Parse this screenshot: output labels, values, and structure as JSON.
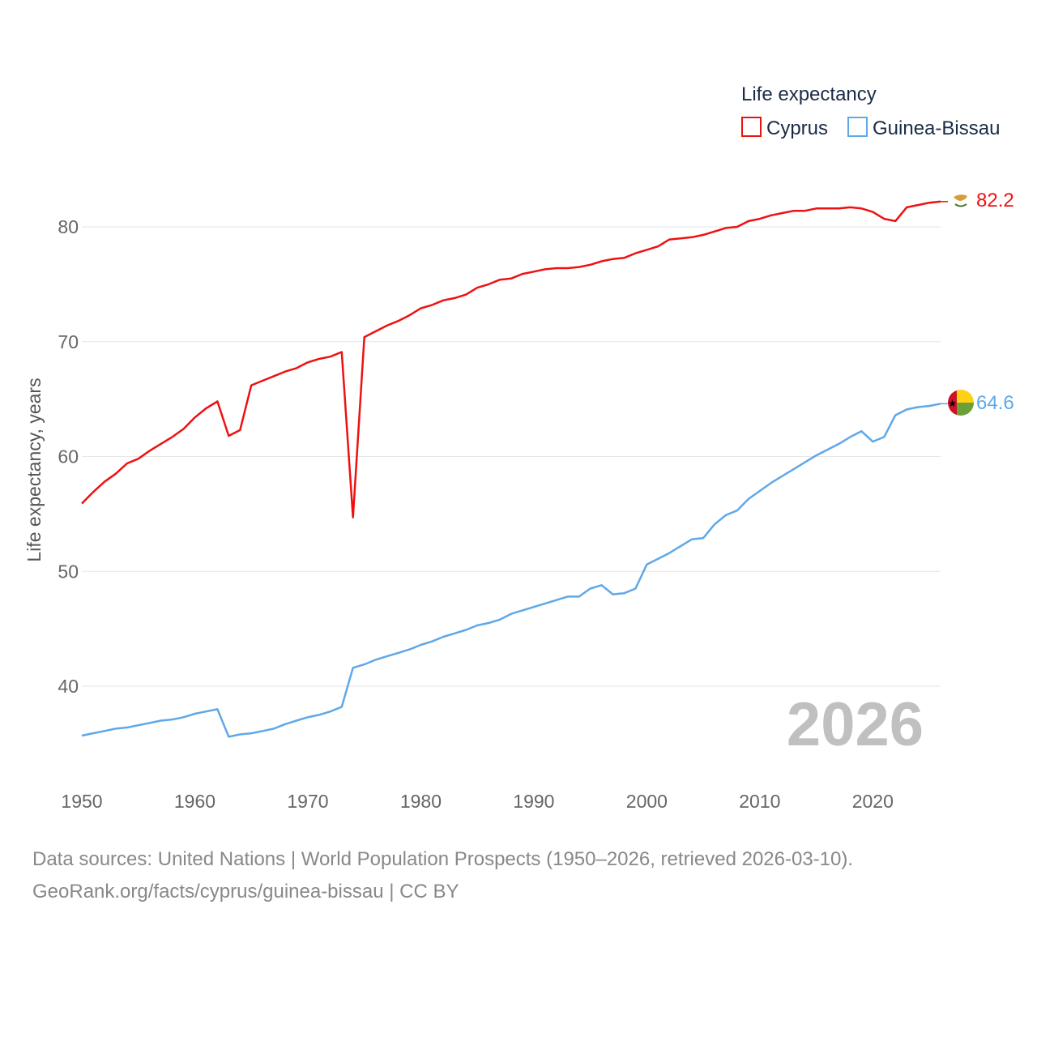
{
  "chart_data": {
    "type": "line",
    "legend_title": "Life expectancy",
    "ylabel": "Life expectancy, years",
    "xlabel": "",
    "xlim": [
      1950,
      2026
    ],
    "ylim": [
      32,
      87
    ],
    "x_ticks": [
      1950,
      1960,
      1970,
      1980,
      1990,
      2000,
      2010,
      2020
    ],
    "y_ticks": [
      40,
      50,
      60,
      70,
      80
    ],
    "year_label": "2026",
    "legend_position": "top-right",
    "series": [
      {
        "name": "Cyprus",
        "color": "#ee1111",
        "end_label": "82.2",
        "icon": "cyprus-flag-icon",
        "x": [
          1950,
          1951,
          1952,
          1953,
          1954,
          1955,
          1956,
          1957,
          1958,
          1959,
          1960,
          1961,
          1962,
          1963,
          1964,
          1965,
          1966,
          1967,
          1968,
          1969,
          1970,
          1971,
          1972,
          1973,
          1974,
          1975,
          1976,
          1977,
          1978,
          1979,
          1980,
          1981,
          1982,
          1983,
          1984,
          1985,
          1986,
          1987,
          1988,
          1989,
          1990,
          1991,
          1992,
          1993,
          1994,
          1995,
          1996,
          1997,
          1998,
          1999,
          2000,
          2001,
          2002,
          2003,
          2004,
          2005,
          2006,
          2007,
          2008,
          2009,
          2010,
          2011,
          2012,
          2013,
          2014,
          2015,
          2016,
          2017,
          2018,
          2019,
          2020,
          2021,
          2022,
          2023,
          2024,
          2025,
          2026
        ],
        "values": [
          55.9,
          56.9,
          57.8,
          58.5,
          59.4,
          59.8,
          60.5,
          61.1,
          61.7,
          62.4,
          63.4,
          64.2,
          64.8,
          61.8,
          62.3,
          66.2,
          66.6,
          67.0,
          67.4,
          67.7,
          68.2,
          68.5,
          68.7,
          69.1,
          54.7,
          70.4,
          70.9,
          71.4,
          71.8,
          72.3,
          72.9,
          73.2,
          73.6,
          73.8,
          74.1,
          74.7,
          75.0,
          75.4,
          75.5,
          75.9,
          76.1,
          76.3,
          76.4,
          76.4,
          76.5,
          76.7,
          77.0,
          77.2,
          77.3,
          77.7,
          78.0,
          78.3,
          78.9,
          79.0,
          79.1,
          79.3,
          79.6,
          79.9,
          80.0,
          80.5,
          80.7,
          81.0,
          81.2,
          81.4,
          81.4,
          81.6,
          81.6,
          81.6,
          81.7,
          81.6,
          81.3,
          80.7,
          80.5,
          81.7,
          81.9,
          82.1,
          82.2
        ]
      },
      {
        "name": "Guinea-Bissau",
        "color": "#5fa8e8",
        "end_label": "64.6",
        "icon": "guinea-bissau-flag-icon",
        "x": [
          1950,
          1951,
          1952,
          1953,
          1954,
          1955,
          1956,
          1957,
          1958,
          1959,
          1960,
          1961,
          1962,
          1963,
          1964,
          1965,
          1966,
          1967,
          1968,
          1969,
          1970,
          1971,
          1972,
          1973,
          1974,
          1975,
          1976,
          1977,
          1978,
          1979,
          1980,
          1981,
          1982,
          1983,
          1984,
          1985,
          1986,
          1987,
          1988,
          1989,
          1990,
          1991,
          1992,
          1993,
          1994,
          1995,
          1996,
          1997,
          1998,
          1999,
          2000,
          2001,
          2002,
          2003,
          2004,
          2005,
          2006,
          2007,
          2008,
          2009,
          2010,
          2011,
          2012,
          2013,
          2014,
          2015,
          2016,
          2017,
          2018,
          2019,
          2020,
          2021,
          2022,
          2023,
          2024,
          2025,
          2026
        ],
        "values": [
          35.7,
          35.9,
          36.1,
          36.3,
          36.4,
          36.6,
          36.8,
          37.0,
          37.1,
          37.3,
          37.6,
          37.8,
          38.0,
          35.6,
          35.8,
          35.9,
          36.1,
          36.3,
          36.7,
          37.0,
          37.3,
          37.5,
          37.8,
          38.2,
          41.6,
          41.9,
          42.3,
          42.6,
          42.9,
          43.2,
          43.6,
          43.9,
          44.3,
          44.6,
          44.9,
          45.3,
          45.5,
          45.8,
          46.3,
          46.6,
          46.9,
          47.2,
          47.5,
          47.8,
          47.8,
          48.5,
          48.8,
          48.0,
          48.1,
          48.5,
          50.6,
          51.1,
          51.6,
          52.2,
          52.8,
          52.9,
          54.1,
          54.9,
          55.3,
          56.3,
          57.0,
          57.7,
          58.3,
          58.9,
          59.5,
          60.1,
          60.6,
          61.1,
          61.7,
          62.2,
          61.3,
          61.7,
          63.6,
          64.1,
          64.3,
          64.4,
          64.6
        ]
      }
    ]
  },
  "source_line_1": "Data sources: United Nations | World Population Prospects (1950–2026, retrieved 2026-03-10).",
  "source_line_2": "GeoRank.org/facts/cyprus/guinea-bissau | CC BY"
}
